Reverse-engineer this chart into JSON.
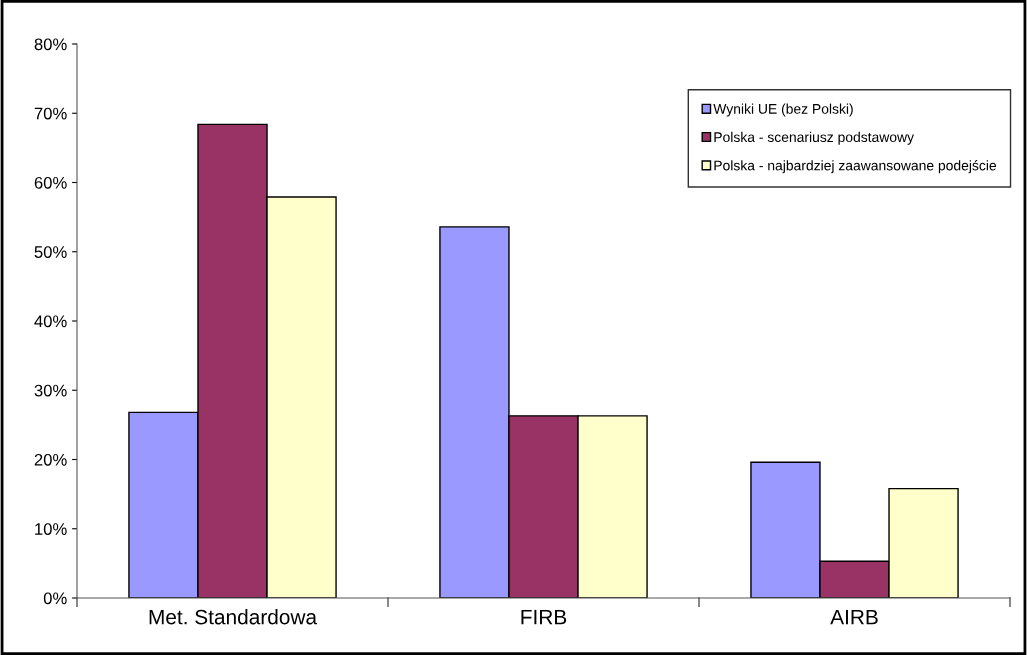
{
  "chart_data": {
    "type": "bar",
    "categories": [
      "Met. Standardowa",
      "FIRB",
      "AIRB"
    ],
    "series": [
      {
        "name": "Wyniki UE (bez Polski)",
        "color": "#9999ff",
        "values": [
          26.8,
          53.6,
          19.6
        ]
      },
      {
        "name": "Polska - scenariusz podstawowy",
        "color": "#993366",
        "values": [
          68.4,
          26.3,
          5.3
        ]
      },
      {
        "name": "Polska - najbardziej zaawansowane podejście",
        "color": "#ffffcc",
        "values": [
          57.9,
          26.3,
          15.8
        ]
      }
    ],
    "ylim": [
      0,
      80
    ],
    "yticks": [
      {
        "value": 0,
        "label": "0%"
      },
      {
        "value": 10,
        "label": "10%"
      },
      {
        "value": 20,
        "label": "20%"
      },
      {
        "value": 30,
        "label": "30%"
      },
      {
        "value": 40,
        "label": "40%"
      },
      {
        "value": 50,
        "label": "50%"
      },
      {
        "value": 60,
        "label": "60%"
      },
      {
        "value": 70,
        "label": "70%"
      },
      {
        "value": 80,
        "label": "80%"
      }
    ],
    "grid": false,
    "legend": "top right"
  }
}
